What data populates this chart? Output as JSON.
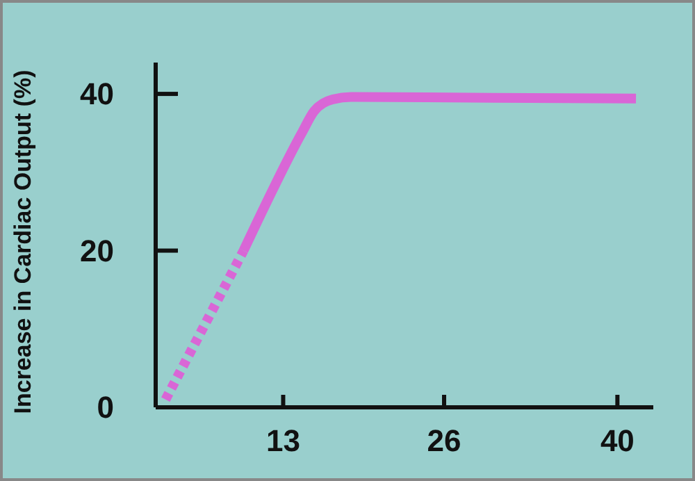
{
  "chart_data": {
    "type": "line",
    "ylabel": "Increase in Cardiac Output (%)",
    "xlim": [
      2.7,
      42.9
    ],
    "xticks": [
      13,
      26,
      40
    ],
    "ylim": [
      0,
      44
    ],
    "yticks": [
      0,
      20,
      40
    ],
    "grid": false,
    "marker": "none",
    "series": [
      {
        "color": "#d966d6",
        "line_style": "dotted",
        "x": [
          3.5,
          9.8
        ],
        "values": [
          1,
          20
        ]
      },
      {
        "color": "#d966d6",
        "line_style": "solid",
        "x": [
          9.8,
          14.5,
          15.5,
          17,
          18.5,
          30,
          41.5
        ],
        "values": [
          20,
          35,
          37.8,
          39.3,
          39.6,
          39.5,
          39.4
        ]
      }
    ]
  }
}
